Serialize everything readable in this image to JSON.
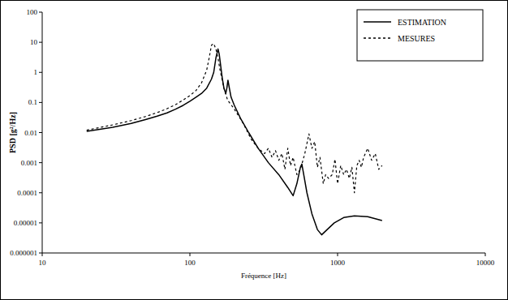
{
  "chart_data": {
    "type": "line",
    "x_label": "Fréquence [Hz]",
    "y_label": "PSD [g²/Hz]",
    "log": true,
    "grid": false,
    "legend": "top-right",
    "xlim": [
      10,
      10000
    ],
    "xticks": [
      10,
      100,
      1000,
      10000
    ],
    "ylim": [
      1e-06,
      100
    ],
    "yticks": [
      1e-06,
      1e-05,
      0.0001,
      0.001,
      0.01,
      0.1,
      1,
      10,
      100
    ],
    "series": [
      {
        "name": "ESTIMATION",
        "color": "#000000",
        "line_style": "solid",
        "x": [
          20,
          30,
          40,
          50,
          60,
          70,
          80,
          90,
          100,
          110,
          120,
          130,
          140,
          145,
          150,
          155,
          158,
          162,
          166,
          170,
          175,
          178,
          181,
          185,
          190,
          200,
          220,
          250,
          290,
          340,
          400,
          460,
          500,
          530,
          560,
          573,
          590,
          620,
          670,
          730,
          780,
          850,
          950,
          1100,
          1300,
          1600,
          2000
        ],
        "values": [
          0.011,
          0.015,
          0.02,
          0.027,
          0.035,
          0.045,
          0.06,
          0.08,
          0.11,
          0.15,
          0.2,
          0.3,
          0.6,
          1,
          3,
          6,
          4,
          1.5,
          0.6,
          0.3,
          0.2,
          0.3,
          0.55,
          0.3,
          0.15,
          0.08,
          0.03,
          0.01,
          0.003,
          0.001,
          0.0004,
          0.00015,
          8e-05,
          0.0002,
          0.0007,
          0.0009,
          0.0004,
          0.0001,
          2e-05,
          6e-06,
          4e-06,
          6e-06,
          1e-05,
          1.5e-05,
          1.7e-05,
          1.6e-05,
          1.2e-05
        ]
      },
      {
        "name": "MESURES",
        "color": "#000000",
        "line_style": "dashed",
        "x": [
          20,
          30,
          40,
          50,
          60,
          70,
          80,
          90,
          100,
          110,
          120,
          130,
          135,
          140,
          145,
          150,
          155,
          160,
          170,
          180,
          200,
          230,
          260,
          290,
          320,
          340,
          360,
          380,
          400,
          420,
          440,
          460,
          480,
          500,
          530,
          560,
          600,
          640,
          670,
          700,
          730,
          760,
          800,
          830,
          870,
          920,
          960,
          1000,
          1050,
          1100,
          1150,
          1200,
          1250,
          1300,
          1350,
          1400,
          1450,
          1500,
          1600,
          1700,
          1800,
          1900,
          2000
        ],
        "values": [
          0.012,
          0.018,
          0.025,
          0.034,
          0.046,
          0.062,
          0.085,
          0.12,
          0.17,
          0.25,
          0.45,
          1.2,
          3,
          8,
          9,
          6,
          3,
          1.2,
          0.3,
          0.12,
          0.06,
          0.02,
          0.006,
          0.003,
          0.002,
          0.003,
          0.0015,
          0.0025,
          0.0012,
          0.002,
          0.0006,
          0.003,
          0.0008,
          0.0015,
          0.0004,
          0.0006,
          0.002,
          0.009,
          0.003,
          0.005,
          0.0007,
          0.0015,
          0.0002,
          0.0004,
          0.0003,
          0.0004,
          0.0013,
          0.0002,
          0.0008,
          0.0004,
          0.0006,
          0.0003,
          0.0007,
          0.0001,
          0.0008,
          0.0012,
          0.0007,
          0.0015,
          0.003,
          0.0012,
          0.002,
          0.0006,
          0.0008
        ]
      }
    ]
  }
}
